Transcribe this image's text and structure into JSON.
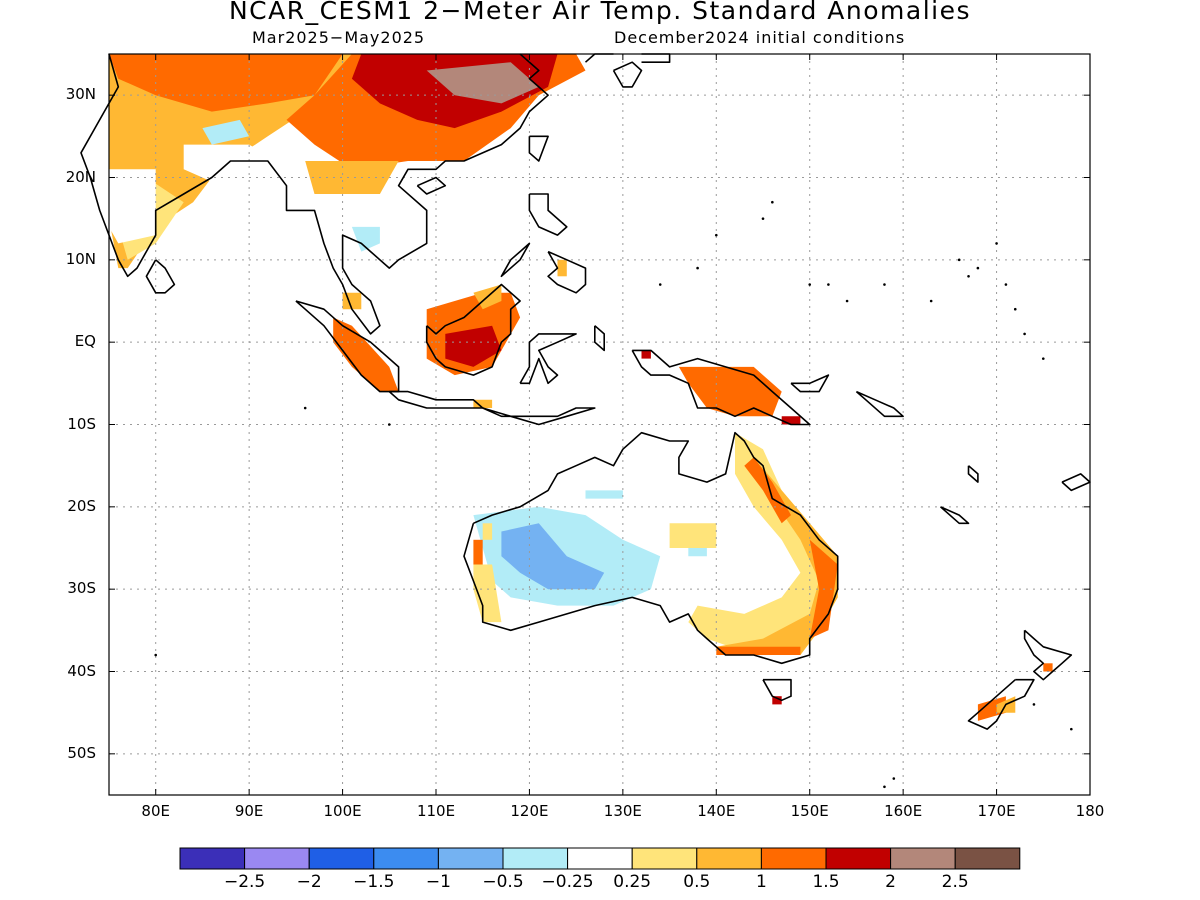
{
  "header": {
    "title": "NCAR_CESM1 2−Meter Air Temp. Standard Anomalies",
    "period": "Mar2025−May2025",
    "init": "December2024 initial conditions"
  },
  "axes": {
    "lat_labels": [
      "30N",
      "20N",
      "10N",
      "EQ",
      "10S",
      "20S",
      "30S",
      "40S",
      "50S"
    ],
    "lat_values": [
      30,
      20,
      10,
      0,
      -10,
      -20,
      -30,
      -40,
      -50
    ],
    "lon_labels": [
      "80E",
      "90E",
      "100E",
      "110E",
      "120E",
      "130E",
      "140E",
      "150E",
      "160E",
      "170E",
      "180"
    ],
    "lon_values": [
      80,
      90,
      100,
      110,
      120,
      130,
      140,
      150,
      160,
      170,
      180
    ],
    "lon_range": [
      75,
      180
    ],
    "lat_range": [
      -55,
      35
    ]
  },
  "colorbar": {
    "colors": [
      "#3b2fb8",
      "#9a88f2",
      "#1f5fe6",
      "#3c8cf0",
      "#74b2f2",
      "#b2ecf7",
      "#ffffff",
      "#ffe47a",
      "#ffb833",
      "#ff6a00",
      "#c10000",
      "#b3877a",
      "#7a5244"
    ],
    "labels": [
      "−2.5",
      "−2",
      "−1.5",
      "−1",
      "−0.5",
      "−0.25",
      "0.25",
      "0.5",
      "1",
      "1.5",
      "2",
      "2.5"
    ]
  },
  "colors": {
    "land_outline": "#000000",
    "grid": "#9a9a9a"
  }
}
